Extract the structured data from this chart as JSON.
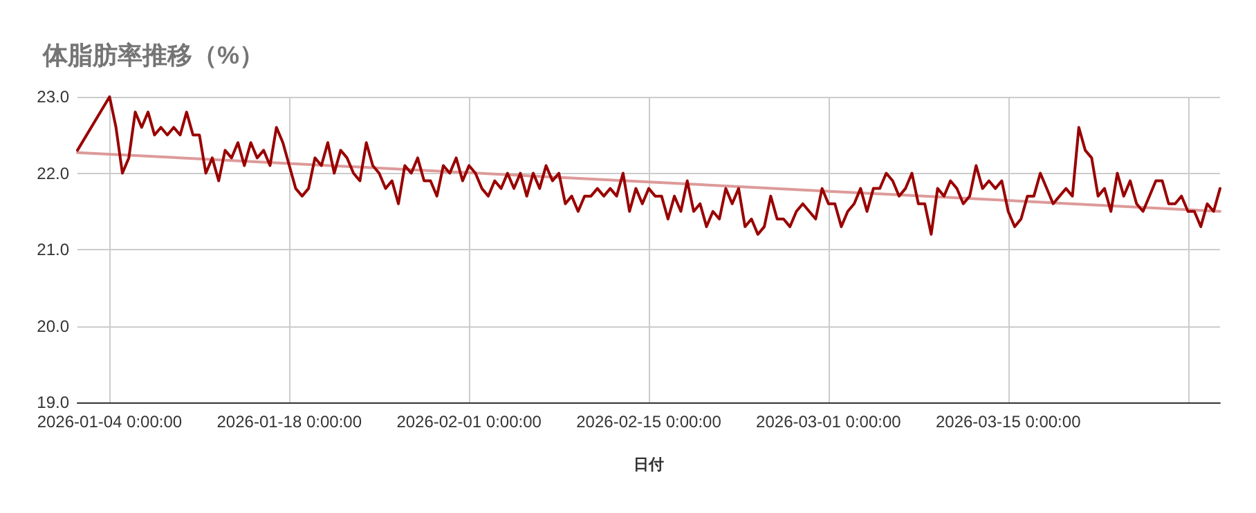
{
  "chart_data": {
    "type": "line",
    "title": "体脂肪率推移（%）",
    "xlabel": "日付",
    "marker": "none",
    "grid": true,
    "xlim": [
      "2026-01-01T12:00",
      "2026-03-31T12:00"
    ],
    "xticks": [
      {
        "value": "2026-01-04",
        "label": "2026-01-04 0:00:00"
      },
      {
        "value": "2026-01-18",
        "label": "2026-01-18 0:00:00"
      },
      {
        "value": "2026-02-01",
        "label": "2026-02-01 0:00:00"
      },
      {
        "value": "2026-02-15",
        "label": "2026-02-15 0:00:00"
      },
      {
        "value": "2026-03-01",
        "label": "2026-03-01 0:00:00"
      },
      {
        "value": "2026-03-15",
        "label": "2026-03-15 0:00:00"
      },
      {
        "value": "2026-03-29",
        "label": null
      }
    ],
    "ylim": [
      19,
      23
    ],
    "yticks": [
      {
        "value": 19,
        "label": "19.0"
      },
      {
        "value": 20,
        "label": "20.0"
      },
      {
        "value": 21,
        "label": "21.0"
      },
      {
        "value": 22,
        "label": "22.0"
      },
      {
        "value": 23,
        "label": "23.0"
      }
    ],
    "series": [
      {
        "color": "#990000",
        "x": [
          "2026-01-01T12:00",
          "2026-01-04T00:00",
          "2026-01-04T12:00",
          "2026-01-05T00:00",
          "2026-01-05T12:00",
          "2026-01-06T00:00",
          "2026-01-06T12:00",
          "2026-01-07T00:00",
          "2026-01-07T12:00",
          "2026-01-08T00:00",
          "2026-01-08T12:00",
          "2026-01-09T00:00",
          "2026-01-09T12:00",
          "2026-01-10T00:00",
          "2026-01-10T12:00",
          "2026-01-11T00:00",
          "2026-01-11T12:00",
          "2026-01-12T00:00",
          "2026-01-12T12:00",
          "2026-01-13T00:00",
          "2026-01-13T12:00",
          "2026-01-14T00:00",
          "2026-01-14T12:00",
          "2026-01-15T00:00",
          "2026-01-15T12:00",
          "2026-01-16T00:00",
          "2026-01-16T12:00",
          "2026-01-17T00:00",
          "2026-01-17T12:00",
          "2026-01-18T00:00",
          "2026-01-18T12:00",
          "2026-01-19T00:00",
          "2026-01-19T12:00",
          "2026-01-20T00:00",
          "2026-01-20T12:00",
          "2026-01-21T00:00",
          "2026-01-21T12:00",
          "2026-01-22T00:00",
          "2026-01-22T12:00",
          "2026-01-23T00:00",
          "2026-01-23T12:00",
          "2026-01-24T00:00",
          "2026-01-24T12:00",
          "2026-01-25T00:00",
          "2026-01-25T12:00",
          "2026-01-26T00:00",
          "2026-01-26T12:00",
          "2026-01-27T00:00",
          "2026-01-27T12:00",
          "2026-01-28T00:00",
          "2026-01-28T12:00",
          "2026-01-29T00:00",
          "2026-01-29T12:00",
          "2026-01-30T00:00",
          "2026-01-30T12:00",
          "2026-01-31T00:00",
          "2026-01-31T12:00",
          "2026-02-01T00:00",
          "2026-02-01T12:00",
          "2026-02-02T00:00",
          "2026-02-02T12:00",
          "2026-02-03T00:00",
          "2026-02-03T12:00",
          "2026-02-04T00:00",
          "2026-02-04T12:00",
          "2026-02-05T00:00",
          "2026-02-05T12:00",
          "2026-02-06T00:00",
          "2026-02-06T12:00",
          "2026-02-07T00:00",
          "2026-02-07T12:00",
          "2026-02-08T00:00",
          "2026-02-08T12:00",
          "2026-02-09T00:00",
          "2026-02-09T12:00",
          "2026-02-10T00:00",
          "2026-02-10T12:00",
          "2026-02-11T00:00",
          "2026-02-11T12:00",
          "2026-02-12T00:00",
          "2026-02-12T12:00",
          "2026-02-13T00:00",
          "2026-02-13T12:00",
          "2026-02-14T00:00",
          "2026-02-14T12:00",
          "2026-02-15T00:00",
          "2026-02-15T12:00",
          "2026-02-16T00:00",
          "2026-02-16T12:00",
          "2026-02-17T00:00",
          "2026-02-17T12:00",
          "2026-02-18T00:00",
          "2026-02-18T12:00",
          "2026-02-19T00:00",
          "2026-02-19T12:00",
          "2026-02-20T00:00",
          "2026-02-20T12:00",
          "2026-02-21T00:00",
          "2026-02-21T12:00",
          "2026-02-22T00:00",
          "2026-02-22T12:00",
          "2026-02-23T00:00",
          "2026-02-23T12:00",
          "2026-02-24T00:00",
          "2026-02-24T12:00",
          "2026-02-25T00:00",
          "2026-02-25T12:00",
          "2026-02-26T00:00",
          "2026-02-26T12:00",
          "2026-02-27T00:00",
          "2026-02-27T12:00",
          "2026-02-28T00:00",
          "2026-02-28T12:00",
          "2026-03-01T00:00",
          "2026-03-01T12:00",
          "2026-03-02T00:00",
          "2026-03-02T12:00",
          "2026-03-03T00:00",
          "2026-03-03T12:00",
          "2026-03-04T00:00",
          "2026-03-04T12:00",
          "2026-03-05T00:00",
          "2026-03-05T12:00",
          "2026-03-06T00:00",
          "2026-03-06T12:00",
          "2026-03-07T00:00",
          "2026-03-07T12:00",
          "2026-03-08T00:00",
          "2026-03-08T12:00",
          "2026-03-09T00:00",
          "2026-03-09T12:00",
          "2026-03-10T00:00",
          "2026-03-10T12:00",
          "2026-03-11T00:00",
          "2026-03-11T12:00",
          "2026-03-12T00:00",
          "2026-03-12T12:00",
          "2026-03-13T00:00",
          "2026-03-13T12:00",
          "2026-03-14T00:00",
          "2026-03-14T12:00",
          "2026-03-15T00:00",
          "2026-03-15T12:00",
          "2026-03-16T00:00",
          "2026-03-16T12:00",
          "2026-03-17T00:00",
          "2026-03-17T12:00",
          "2026-03-18T00:00",
          "2026-03-18T12:00",
          "2026-03-19T00:00",
          "2026-03-19T12:00",
          "2026-03-20T00:00",
          "2026-03-20T12:00",
          "2026-03-21T00:00",
          "2026-03-21T12:00",
          "2026-03-22T00:00",
          "2026-03-22T12:00",
          "2026-03-23T00:00",
          "2026-03-23T12:00",
          "2026-03-24T00:00",
          "2026-03-24T12:00",
          "2026-03-25T00:00",
          "2026-03-25T12:00",
          "2026-03-26T00:00",
          "2026-03-26T12:00",
          "2026-03-27T00:00",
          "2026-03-27T12:00",
          "2026-03-28T00:00",
          "2026-03-28T12:00",
          "2026-03-29T00:00",
          "2026-03-29T12:00",
          "2026-03-30T00:00",
          "2026-03-30T12:00",
          "2026-03-31T00:00",
          "2026-03-31T12:00"
        ],
        "values": [
          22.3,
          23.0,
          22.6,
          22.0,
          22.2,
          22.8,
          22.6,
          22.8,
          22.5,
          22.6,
          22.5,
          22.6,
          22.5,
          22.8,
          22.5,
          22.5,
          22.0,
          22.2,
          21.9,
          22.3,
          22.2,
          22.4,
          22.1,
          22.4,
          22.2,
          22.3,
          22.1,
          22.6,
          22.4,
          22.1,
          21.8,
          21.7,
          21.8,
          22.2,
          22.1,
          22.4,
          22.0,
          22.3,
          22.2,
          22.0,
          21.9,
          22.4,
          22.1,
          22.0,
          21.8,
          21.9,
          21.6,
          22.1,
          22.0,
          22.2,
          21.9,
          21.9,
          21.7,
          22.1,
          22.0,
          22.2,
          21.9,
          22.1,
          22.0,
          21.8,
          21.7,
          21.9,
          21.8,
          22.0,
          21.8,
          22.0,
          21.7,
          22.0,
          21.8,
          22.1,
          21.9,
          22.0,
          21.6,
          21.7,
          21.5,
          21.7,
          21.7,
          21.8,
          21.7,
          21.8,
          21.7,
          22.0,
          21.5,
          21.8,
          21.6,
          21.8,
          21.7,
          21.7,
          21.4,
          21.7,
          21.5,
          21.9,
          21.5,
          21.6,
          21.3,
          21.5,
          21.4,
          21.8,
          21.6,
          21.8,
          21.3,
          21.4,
          21.2,
          21.3,
          21.7,
          21.4,
          21.4,
          21.3,
          21.5,
          21.6,
          21.5,
          21.4,
          21.8,
          21.6,
          21.6,
          21.3,
          21.5,
          21.6,
          21.8,
          21.5,
          21.8,
          21.8,
          22.0,
          21.9,
          21.7,
          21.8,
          22.0,
          21.6,
          21.6,
          21.2,
          21.8,
          21.7,
          21.9,
          21.8,
          21.6,
          21.7,
          22.1,
          21.8,
          21.9,
          21.8,
          21.9,
          21.5,
          21.3,
          21.4,
          21.7,
          21.7,
          22.0,
          21.8,
          21.6,
          21.7,
          21.8,
          21.7,
          22.6,
          22.3,
          22.2,
          21.7,
          21.8,
          21.5,
          22.0,
          21.7,
          21.9,
          21.6,
          21.5,
          21.7,
          21.9,
          21.9,
          21.6,
          21.6,
          21.7,
          21.5,
          21.5,
          21.3,
          21.6,
          21.5,
          21.8
        ]
      },
      {
        "color": "#dd9a9a",
        "x": [
          "2026-01-01T12:00",
          "2026-03-31T12:00"
        ],
        "values": [
          22.27,
          21.5
        ]
      }
    ]
  }
}
